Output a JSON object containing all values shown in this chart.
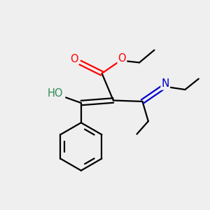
{
  "bg_color": "#efefef",
  "atom_colors": {
    "C": "#000000",
    "O": "#ff0000",
    "N": "#0000cc",
    "H": "#2e8b57"
  },
  "figsize": [
    3.0,
    3.0
  ],
  "dpi": 100
}
